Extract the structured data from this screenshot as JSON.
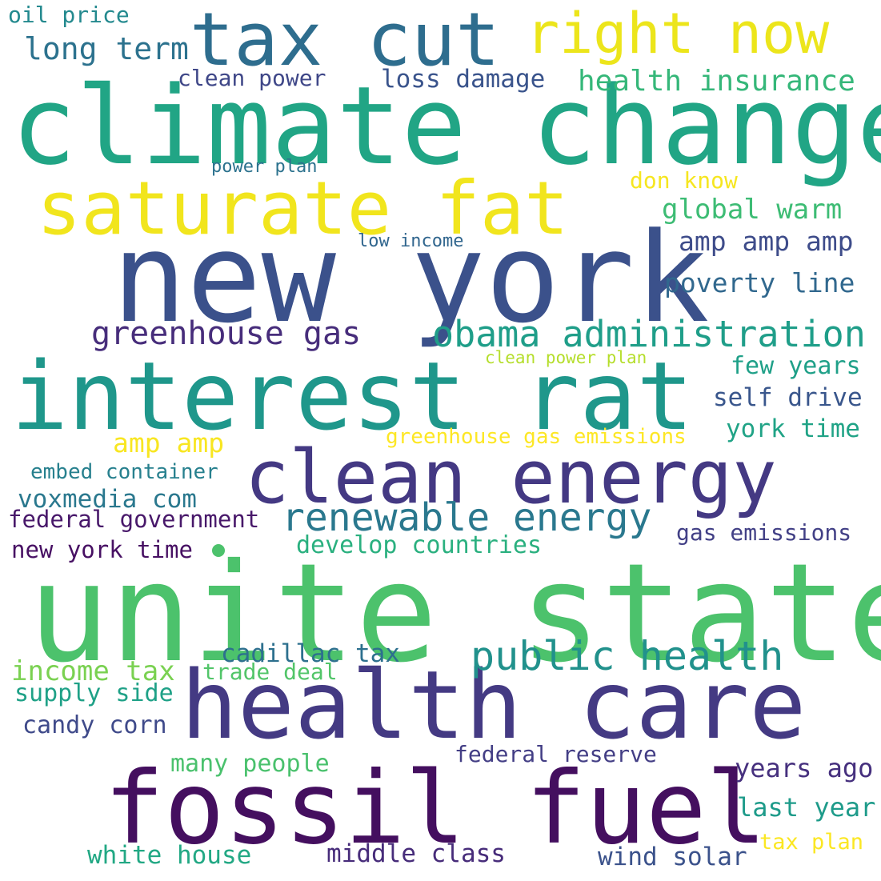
{
  "words": [
    {
      "text": "climate change",
      "color": "#21a585"
    },
    {
      "text": "unite state",
      "color": "#4cc26c"
    },
    {
      "text": "new york",
      "color": "#3b518b"
    },
    {
      "text": "interest rat",
      "color": "#1f978b"
    },
    {
      "text": "health care",
      "color": "#443a83"
    },
    {
      "text": "fossil fuel",
      "color": "#440f5f"
    },
    {
      "text": "clean energy",
      "color": "#443983"
    },
    {
      "text": "saturate fat",
      "color": "#f1e51d"
    },
    {
      "text": "tax cut",
      "color": "#2e6d8e"
    },
    {
      "text": "right now",
      "color": "#ece51b"
    },
    {
      "text": "obama administration",
      "color": "#1f9e89"
    },
    {
      "text": "renewable energy",
      "color": "#2a788e"
    },
    {
      "text": "public health",
      "color": "#21918c"
    },
    {
      "text": "greenhouse gas",
      "color": "#472d7b"
    },
    {
      "text": "health insurance",
      "color": "#35b779"
    },
    {
      "text": "global warm",
      "color": "#3dbc74"
    },
    {
      "text": "amp amp amp",
      "color": "#3e4c8a"
    },
    {
      "text": "poverty line",
      "color": "#31688e"
    },
    {
      "text": "long term",
      "color": "#2c728e"
    },
    {
      "text": "loss damage",
      "color": "#3a548c"
    },
    {
      "text": "clean power",
      "color": "#3f4788"
    },
    {
      "text": "oil price",
      "color": "#23898e"
    },
    {
      "text": "power plan",
      "color": "#2c728e"
    },
    {
      "text": "don know",
      "color": "#f6e620"
    },
    {
      "text": "low income",
      "color": "#31668e"
    },
    {
      "text": "clean power plan",
      "color": "#b5de2b"
    },
    {
      "text": "few years",
      "color": "#1fa088"
    },
    {
      "text": "self drive",
      "color": "#39568c"
    },
    {
      "text": "york time",
      "color": "#20a386"
    },
    {
      "text": "greenhouse gas emissions",
      "color": "#fde725"
    },
    {
      "text": "amp amp",
      "color": "#f8e621"
    },
    {
      "text": "embed container",
      "color": "#27808e"
    },
    {
      "text": "voxmedia com",
      "color": "#2a788e"
    },
    {
      "text": "federal government",
      "color": "#48186a"
    },
    {
      "text": "gas emissions",
      "color": "#424086"
    },
    {
      "text": "develop countries",
      "color": "#2ab07f"
    },
    {
      "text": "new york time",
      "color": "#471063"
    },
    {
      "text": "cadillac tax",
      "color": "#2d708e"
    },
    {
      "text": "income tax",
      "color": "#7ad151"
    },
    {
      "text": "trade deal",
      "color": "#52c569"
    },
    {
      "text": "supply side",
      "color": "#1fa187"
    },
    {
      "text": "candy corn",
      "color": "#3f4a8a"
    },
    {
      "text": "federal reserve",
      "color": "#433e85"
    },
    {
      "text": "many people",
      "color": "#4ac16d"
    },
    {
      "text": "years ago",
      "color": "#46307e"
    },
    {
      "text": "last year",
      "color": "#1e9b8a"
    },
    {
      "text": "tax plan",
      "color": "#fbe723"
    },
    {
      "text": "white house",
      "color": "#22a884"
    },
    {
      "text": "middle class",
      "color": "#472c7a"
    },
    {
      "text": "wind solar",
      "color": "#3b528b"
    }
  ],
  "dot": {
    "color": "#4cc26c"
  }
}
